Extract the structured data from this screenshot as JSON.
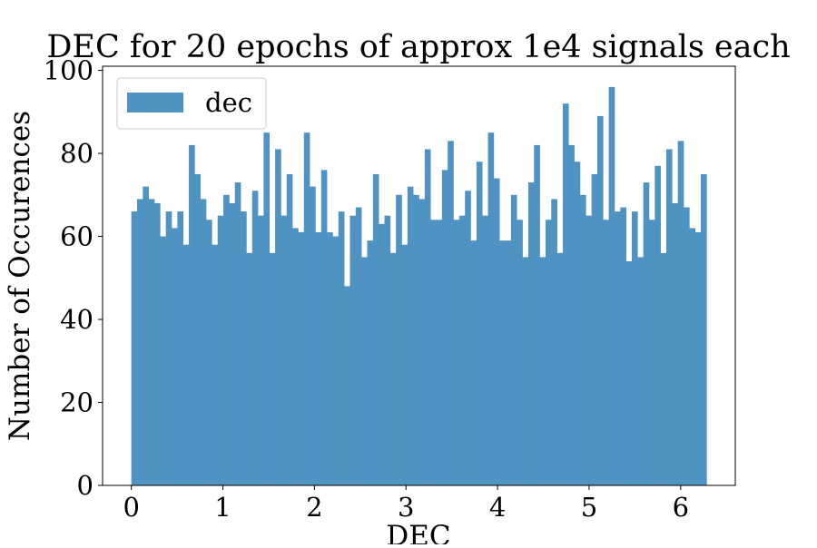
{
  "chart_data": {
    "type": "bar",
    "title": "DEC for 20 epochs of approx 1e4 signals each",
    "xlabel": "DEC",
    "ylabel": "Number of Occurences",
    "xlim": [
      -0.314,
      6.597
    ],
    "ylim": [
      0,
      101
    ],
    "xticks": [
      0,
      1,
      2,
      3,
      4,
      5,
      6
    ],
    "yticks": [
      0,
      20,
      40,
      60,
      80,
      100
    ],
    "grid": false,
    "legend": {
      "position": "top-left",
      "entries": [
        "dec"
      ]
    },
    "bin_start": 0,
    "bin_end": 6.2832,
    "series": [
      {
        "name": "dec",
        "color": "#4f93c3",
        "values": [
          66,
          69,
          72,
          69,
          68,
          60,
          66,
          62,
          66,
          58,
          82,
          75,
          69,
          64,
          58,
          65,
          70,
          68,
          73,
          66,
          56,
          71,
          65,
          85,
          56,
          81,
          65,
          75,
          62,
          61,
          85,
          72,
          61,
          76,
          61,
          60,
          66,
          48,
          65,
          67,
          55,
          59,
          75,
          63,
          65,
          56,
          70,
          58,
          72,
          70,
          69,
          81,
          64,
          64,
          76,
          83,
          64,
          65,
          71,
          59,
          78,
          65,
          85,
          74,
          59,
          59,
          70,
          64,
          55,
          73,
          82,
          55,
          64,
          69,
          56,
          92,
          82,
          78,
          70,
          65,
          75,
          89,
          64,
          96,
          66,
          67,
          54,
          66,
          55,
          73,
          64,
          77,
          56,
          81,
          68,
          83,
          67,
          62,
          61,
          75
        ]
      }
    ]
  }
}
